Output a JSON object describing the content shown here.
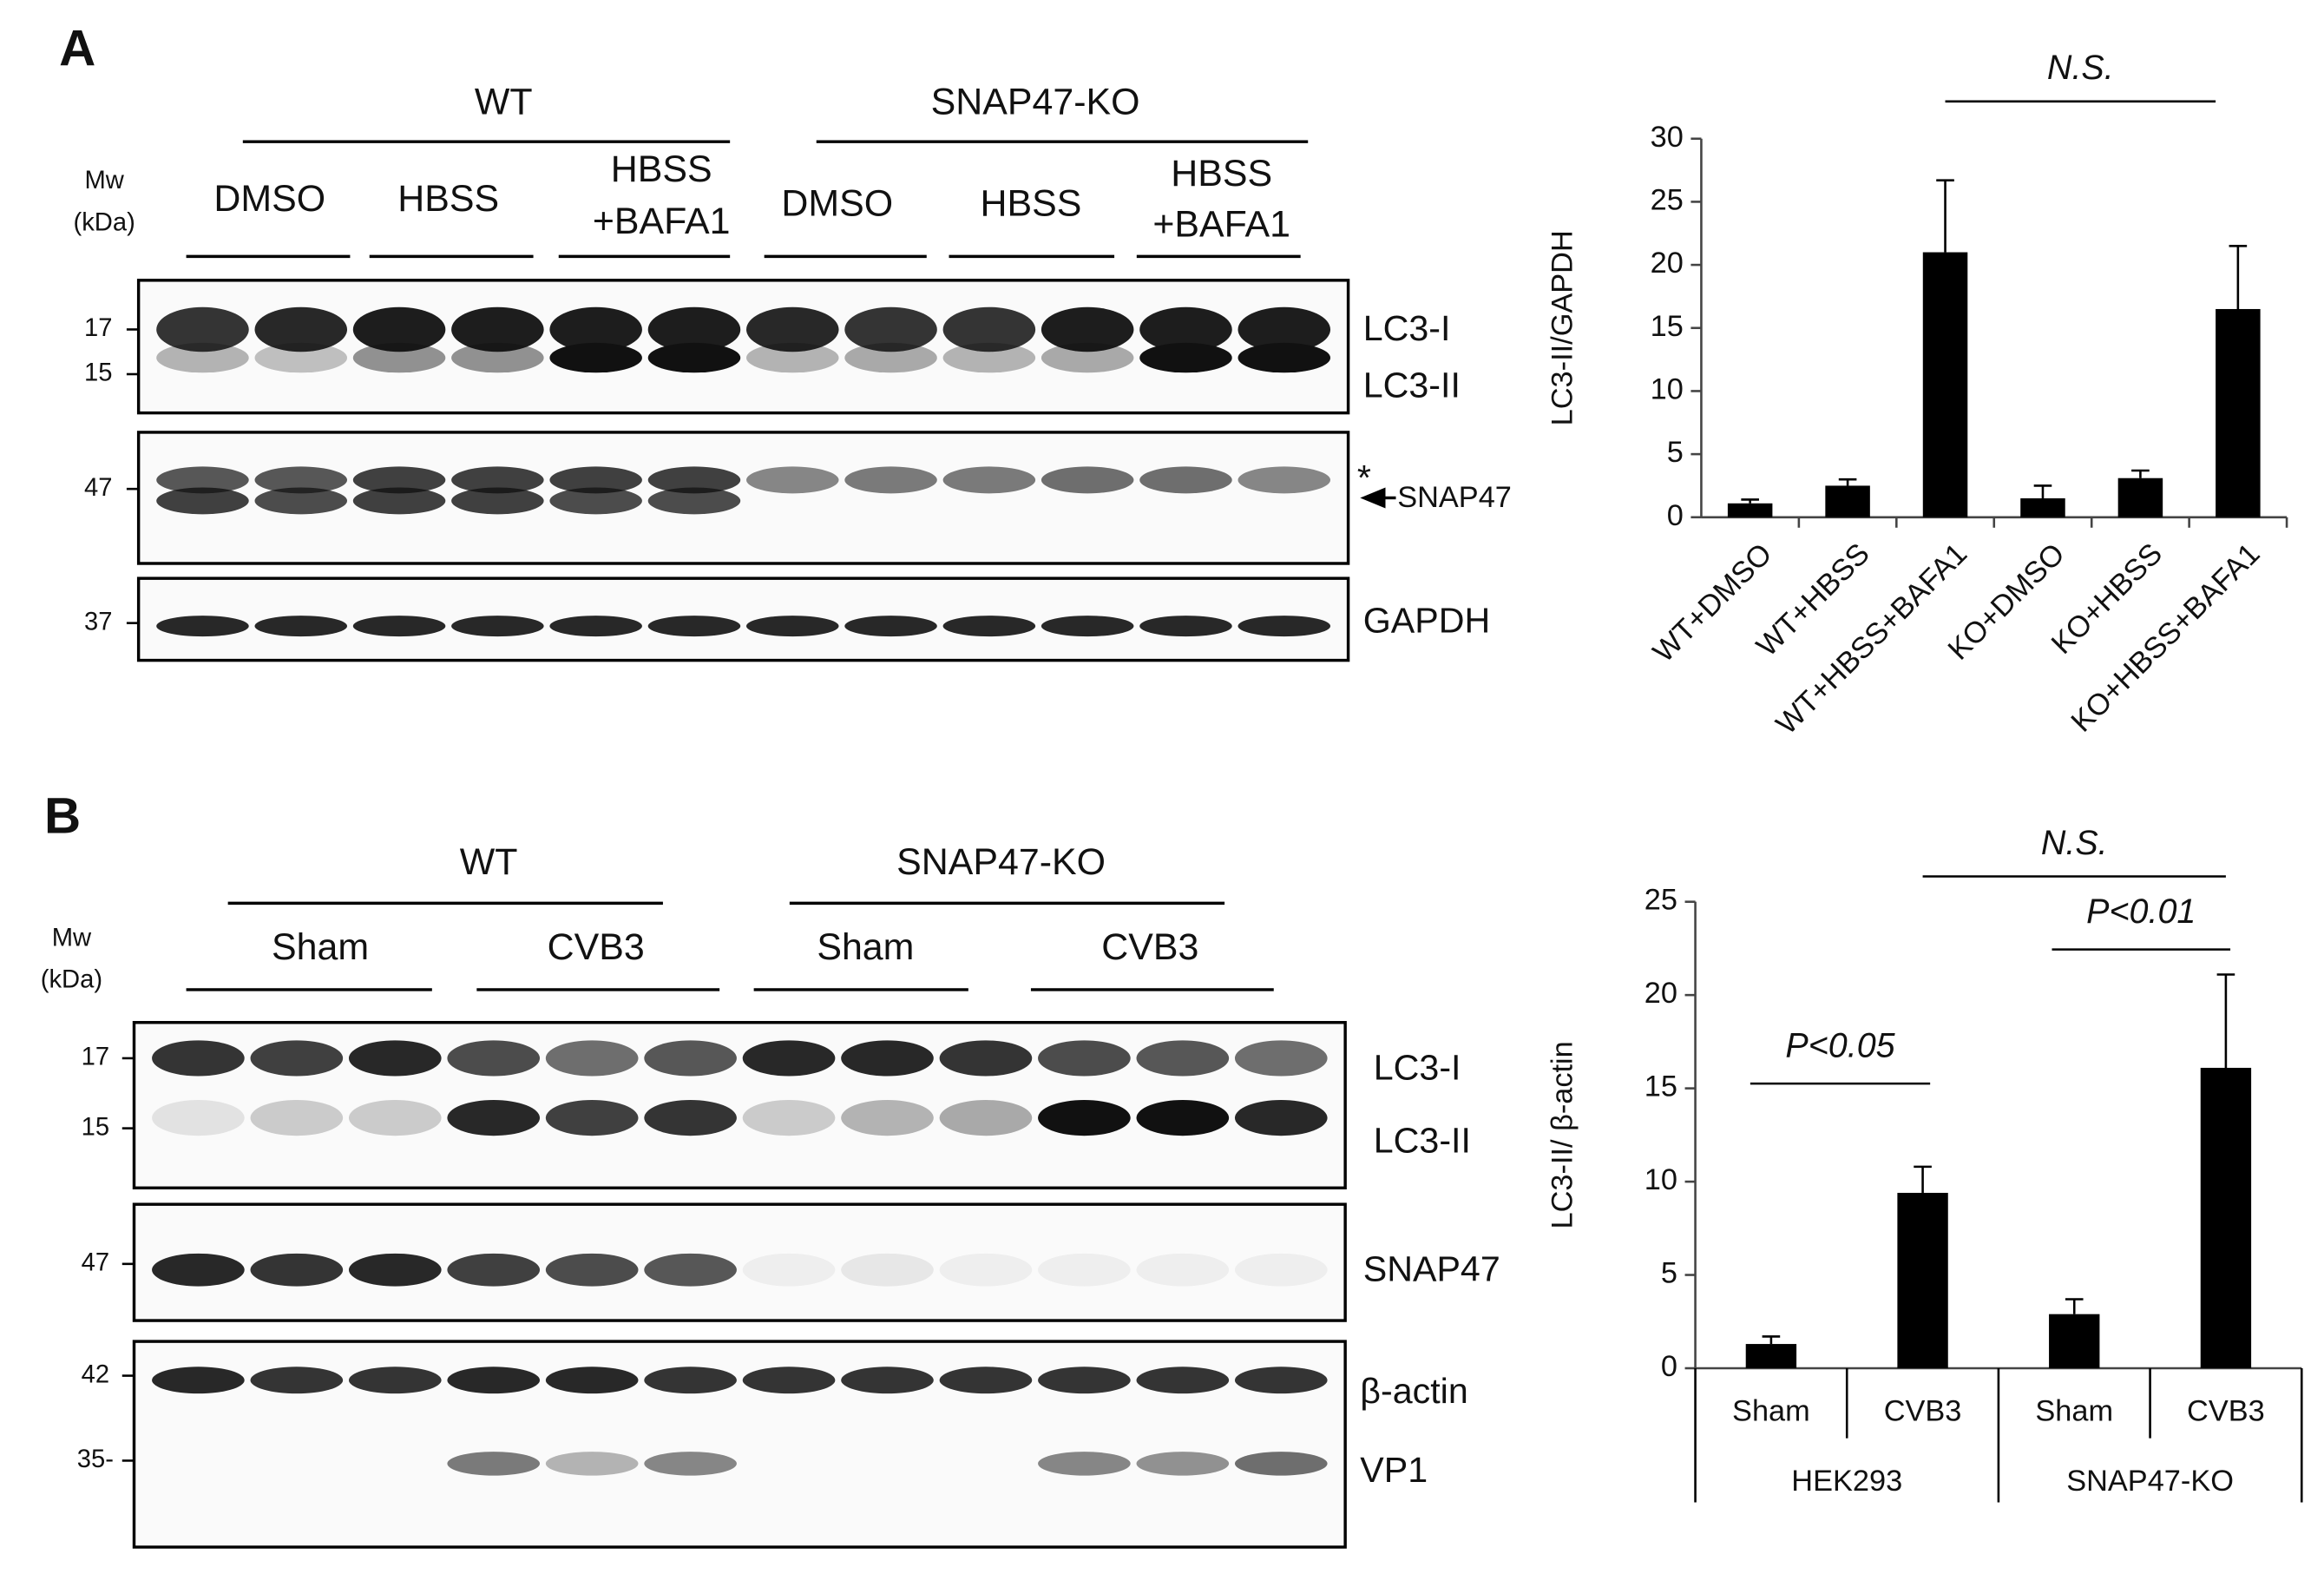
{
  "blots": [
    {
      "panel": "A",
      "mw_header": [
        "Mw",
        "(kDa)"
      ],
      "groups": [
        "WT",
        "SNAP47-KO"
      ],
      "conditions": [
        [
          "DMSO"
        ],
        [
          "HBSS"
        ],
        [
          "HBSS",
          "+BAFA1"
        ],
        [
          "DMSO"
        ],
        [
          "HBSS"
        ],
        [
          "HBSS",
          "+BAFA1"
        ]
      ],
      "membranes": [
        {
          "markers": [
            "17",
            "15"
          ],
          "labels": [
            "LC3-I",
            "LC3-II"
          ]
        },
        {
          "markers": [
            "47"
          ],
          "labels": [
            "*",
            "SNAP47"
          ]
        },
        {
          "markers": [
            "37"
          ],
          "labels": [
            "GAPDH"
          ]
        }
      ]
    },
    {
      "panel": "B",
      "mw_header": [
        "Mw",
        "(kDa)"
      ],
      "groups": [
        "WT",
        "SNAP47-KO"
      ],
      "conditions": [
        [
          "Sham"
        ],
        [
          "CVB3"
        ],
        [
          "Sham"
        ],
        [
          "CVB3"
        ]
      ],
      "membranes": [
        {
          "markers": [
            "17",
            "15"
          ],
          "labels": [
            "LC3-I",
            "LC3-II"
          ]
        },
        {
          "markers": [
            "47"
          ],
          "labels": [
            "SNAP47"
          ]
        },
        {
          "markers": [
            "42",
            "35-"
          ],
          "labels": [
            "β-actin",
            "VP1"
          ]
        }
      ]
    }
  ],
  "chart_data": [
    {
      "type": "bar",
      "ylabel": "LC3-II/GAPDH",
      "categories": [
        "WT+DMSO",
        "WT+HBSS",
        "WT+HBSS+BAFA1",
        "KO+DMSO",
        "KO+HBSS",
        "KO+HBSS+BAFA1"
      ],
      "values": [
        1.1,
        2.5,
        21,
        1.5,
        3.1,
        16.5
      ],
      "errors": [
        0.3,
        0.5,
        5.7,
        1.0,
        0.6,
        5.0
      ],
      "color": "#000000",
      "ylim": [
        0,
        30
      ],
      "yticks": [
        0,
        5,
        10,
        15,
        20,
        25,
        30
      ],
      "annotations": [
        "N.S."
      ]
    },
    {
      "type": "bar",
      "ylabel": "LC3-II/ β-actin",
      "categories": [
        "Sham",
        "CVB3",
        "Sham",
        "CVB3"
      ],
      "groups": [
        "HEK293",
        "SNAP47-KO"
      ],
      "values": [
        1.3,
        9.4,
        2.9,
        16.1
      ],
      "errors": [
        0.4,
        1.4,
        0.8,
        5.0
      ],
      "color": "#000000",
      "ylim": [
        0,
        25
      ],
      "yticks": [
        0,
        5,
        10,
        15,
        20,
        25
      ],
      "annotations": [
        "P<0.05",
        "P<0.01",
        "N.S."
      ]
    }
  ]
}
